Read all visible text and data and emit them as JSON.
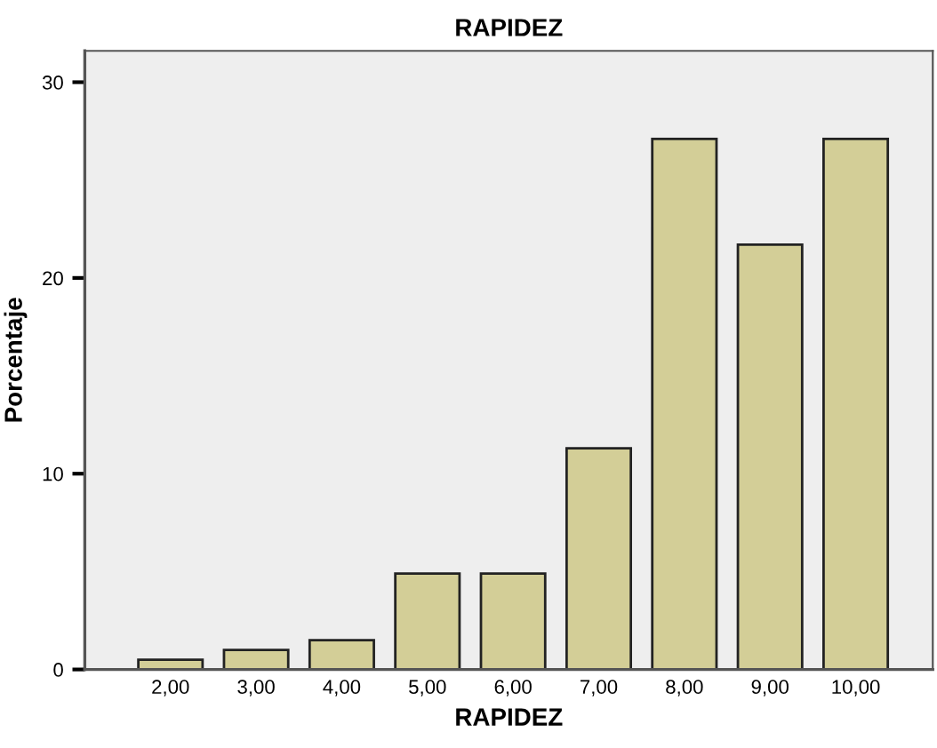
{
  "chart_data": {
    "type": "bar",
    "title": "RAPIDEZ",
    "xlabel": "RAPIDEZ",
    "ylabel": "Porcentaje",
    "categories": [
      "2,00",
      "3,00",
      "4,00",
      "5,00",
      "6,00",
      "7,00",
      "8,00",
      "9,00",
      "10,00"
    ],
    "values": [
      0.5,
      1.0,
      1.5,
      4.9,
      4.9,
      11.3,
      27.1,
      21.7,
      27.1
    ],
    "color": "#d3ce97",
    "ylim": [
      0,
      31.6
    ],
    "yticks": [
      0,
      10,
      20,
      30
    ],
    "grid": false
  }
}
